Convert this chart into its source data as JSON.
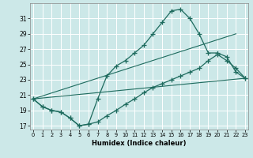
{
  "xlabel": "Humidex (Indice chaleur)",
  "bg_color": "#cce8e8",
  "grid_color": "#b8d8d8",
  "line_color": "#1e6b5e",
  "lines": [
    {
      "x": [
        0,
        1,
        2,
        3,
        4,
        5,
        6,
        7,
        8,
        9,
        10,
        11,
        12,
        13,
        14,
        15,
        16,
        17,
        18,
        19,
        20,
        21,
        22,
        23
      ],
      "y": [
        20.5,
        19.5,
        19.0,
        18.8,
        18.0,
        17.0,
        17.2,
        20.5,
        23.5,
        24.8,
        25.5,
        26.5,
        27.5,
        29.0,
        30.5,
        32.0,
        32.2,
        31.0,
        29.0,
        26.5,
        26.5,
        26.0,
        24.0,
        23.2
      ],
      "has_markers": true
    },
    {
      "x": [
        0,
        1,
        2,
        3,
        4,
        5,
        6,
        7,
        8,
        9,
        10,
        11,
        12,
        13,
        14,
        15,
        16,
        17,
        18,
        19,
        20,
        21,
        22,
        23
      ],
      "y": [
        20.5,
        19.5,
        19.0,
        18.8,
        18.0,
        17.0,
        17.2,
        17.5,
        18.3,
        19.0,
        19.8,
        20.5,
        21.3,
        22.0,
        22.5,
        23.0,
        23.5,
        24.0,
        24.5,
        25.5,
        26.3,
        25.5,
        24.5,
        23.2
      ],
      "has_markers": true
    },
    {
      "x": [
        0,
        22
      ],
      "y": [
        20.5,
        29.0
      ],
      "has_markers": false
    },
    {
      "x": [
        0,
        23
      ],
      "y": [
        20.5,
        23.2
      ],
      "has_markers": false
    }
  ],
  "yticks": [
    17,
    19,
    21,
    23,
    25,
    27,
    29,
    31
  ],
  "xticks": [
    0,
    1,
    2,
    3,
    4,
    5,
    6,
    7,
    8,
    9,
    10,
    11,
    12,
    13,
    14,
    15,
    16,
    17,
    18,
    19,
    20,
    21,
    22,
    23
  ],
  "ylim": [
    16.5,
    33.0
  ],
  "xlim": [
    -0.3,
    23.3
  ]
}
